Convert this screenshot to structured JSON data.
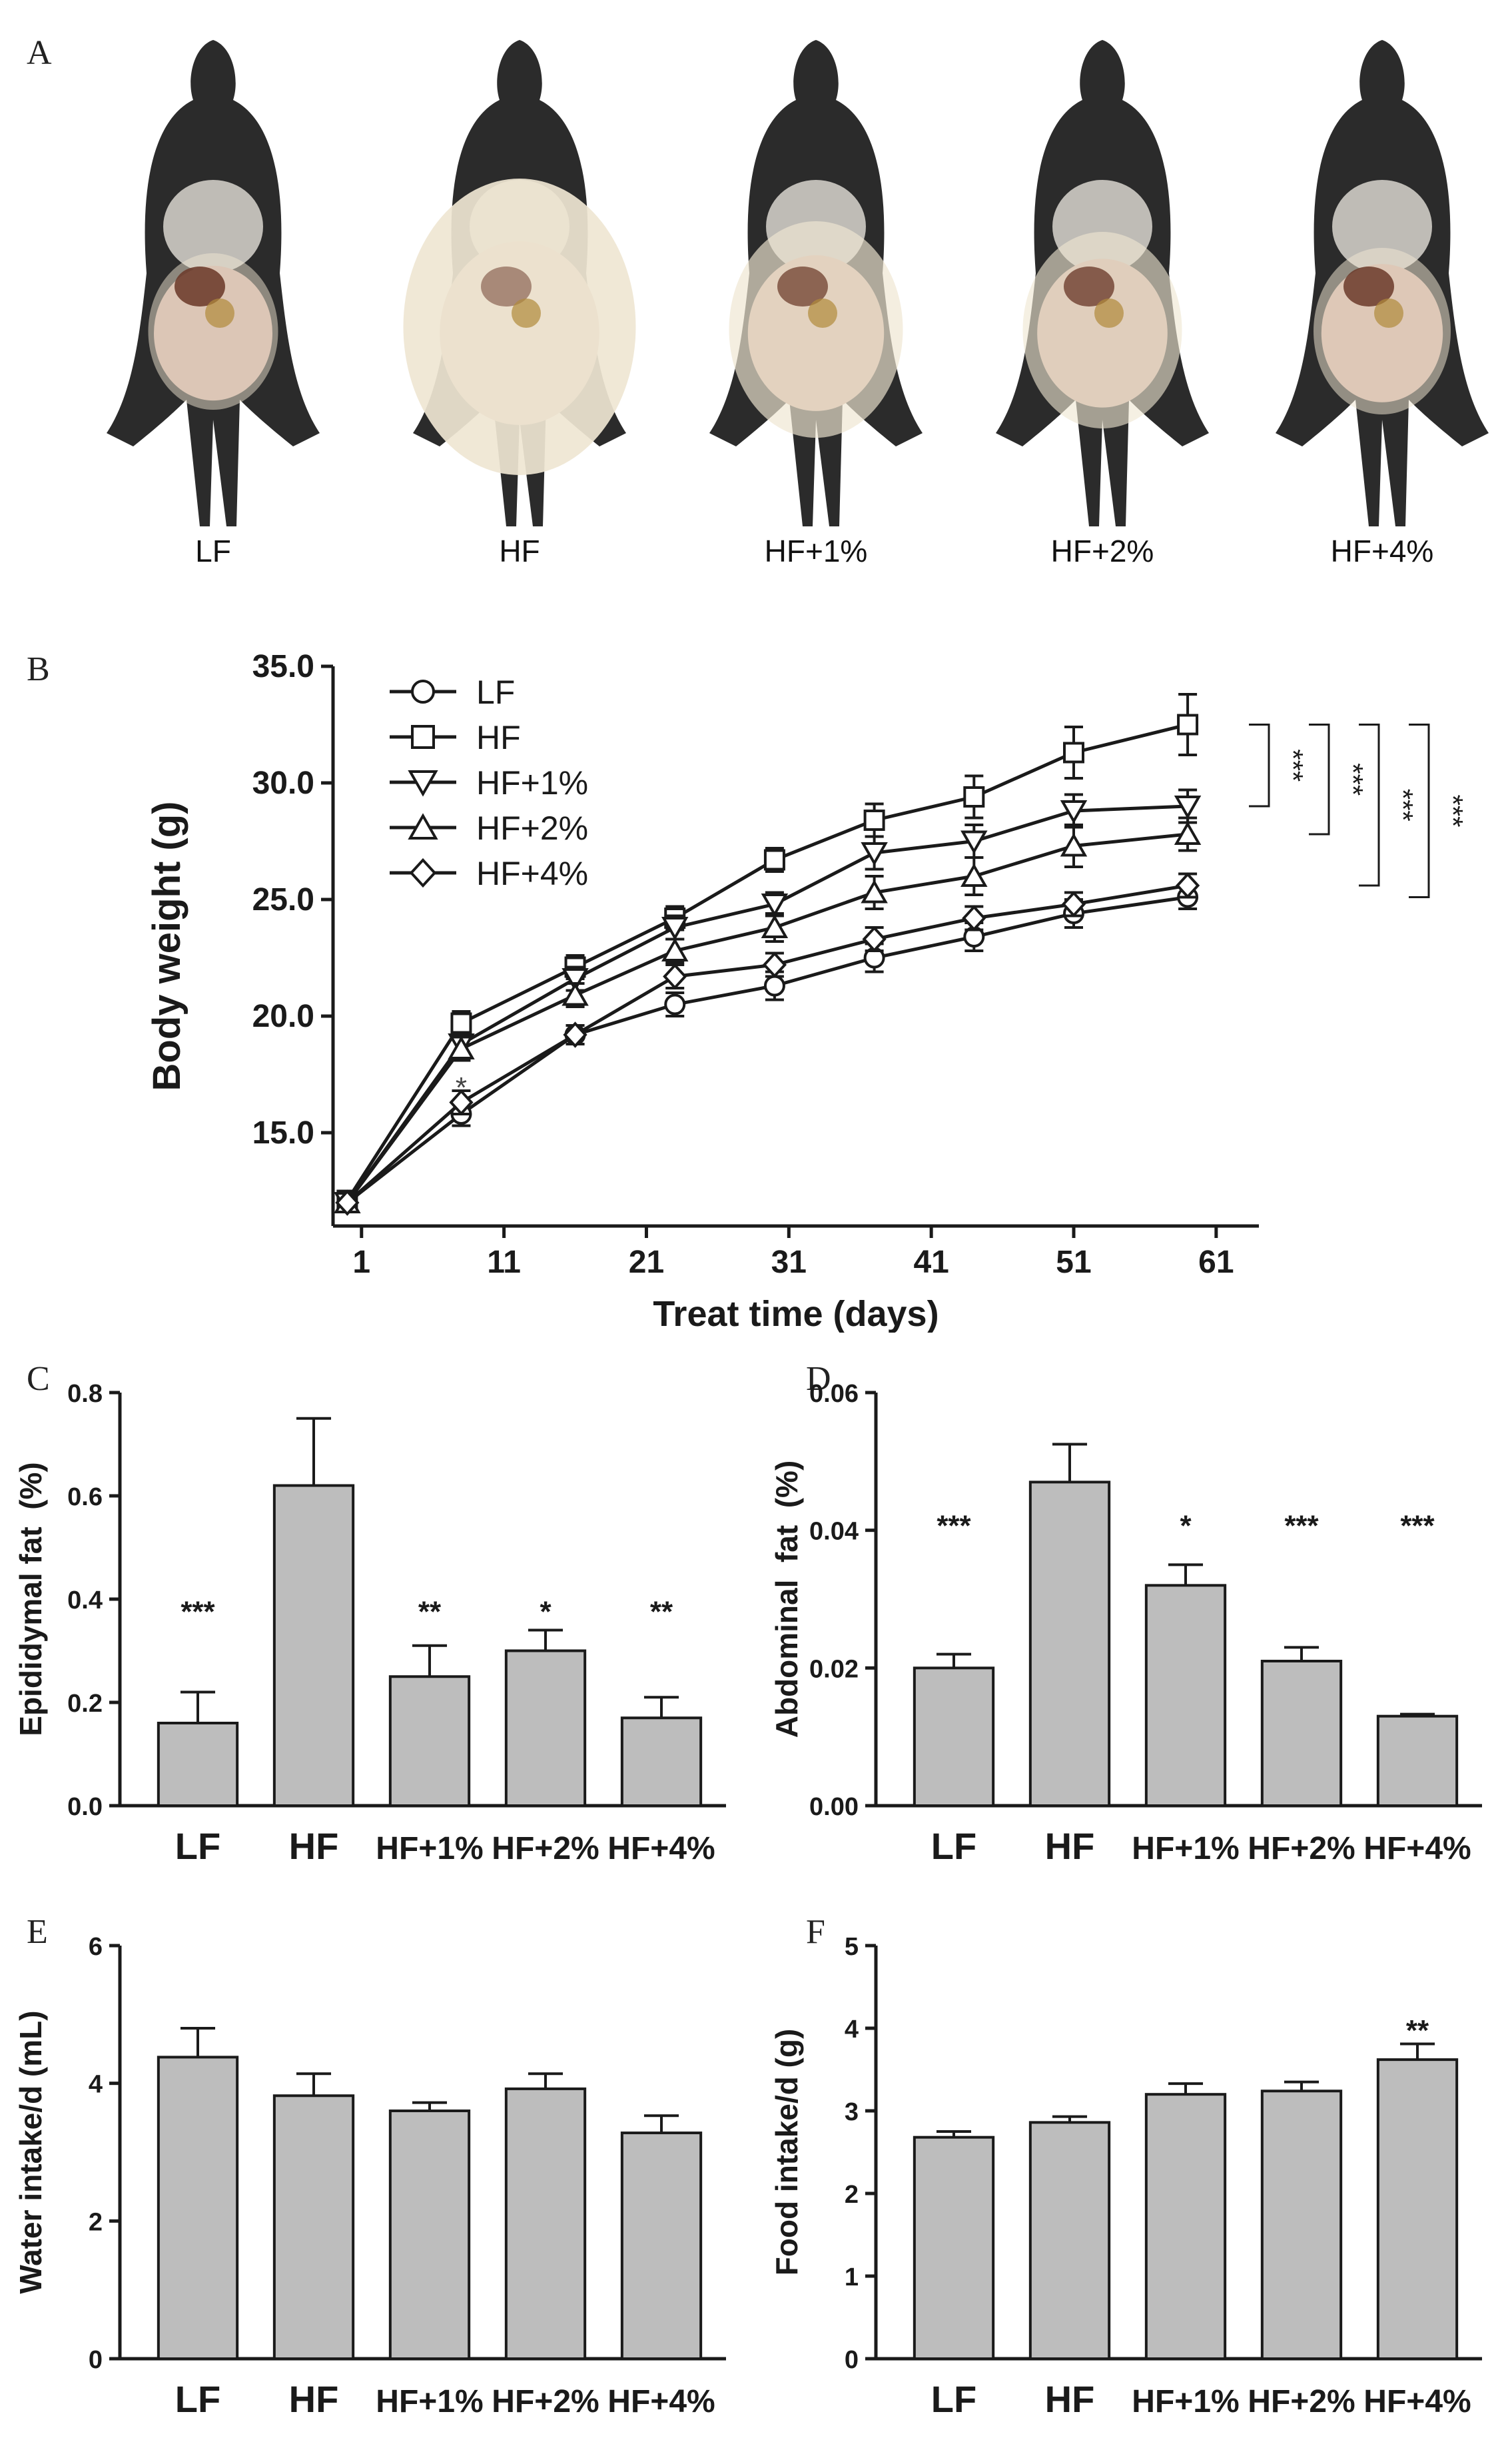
{
  "panels": {
    "a": "A",
    "b": "B",
    "c": "C",
    "d": "D",
    "e": "E",
    "f": "F"
  },
  "mice": {
    "labels": [
      "LF",
      "HF",
      "HF+1%",
      "HF+2%",
      "HF+4%"
    ],
    "fat_level": [
      0.25,
      0.95,
      0.55,
      0.45,
      0.3
    ]
  },
  "colors": {
    "bar": "#bdbdbd",
    "axis": "#1a1a1a",
    "fur": "#2b2b2b",
    "fat": "#efe6d2",
    "liver": "#6b3a2a"
  },
  "chart_data": [
    {
      "id": "B",
      "type": "line",
      "title": "",
      "xlabel": "Treat time (days)",
      "ylabel": "Body weight (g)",
      "xlim": [
        -1,
        64
      ],
      "ylim": [
        11,
        35
      ],
      "xticks": [
        1,
        11,
        21,
        31,
        41,
        51,
        61
      ],
      "yticks": [
        15.0,
        20.0,
        25.0,
        30.0,
        35.0
      ],
      "ytick_labels": [
        "15.0",
        "20.0",
        "25.0",
        "30.0",
        "35.0"
      ],
      "x": [
        0,
        8,
        16,
        23,
        30,
        37,
        44,
        51,
        59
      ],
      "series": [
        {
          "name": "LF",
          "marker": "circle",
          "values": [
            12.0,
            15.8,
            19.2,
            20.5,
            21.3,
            22.5,
            23.4,
            24.4,
            25.1
          ],
          "errors": [
            0.4,
            0.5,
            0.4,
            0.5,
            0.6,
            0.6,
            0.6,
            0.6,
            0.5
          ]
        },
        {
          "name": "HF",
          "marker": "square",
          "values": [
            12.1,
            19.7,
            22.1,
            24.2,
            26.7,
            28.4,
            29.4,
            31.3,
            32.5
          ],
          "errors": [
            0.4,
            0.5,
            0.5,
            0.5,
            0.5,
            0.7,
            0.9,
            1.1,
            1.3
          ]
        },
        {
          "name": "HF+1%",
          "marker": "triangle-down",
          "values": [
            12.0,
            18.8,
            21.6,
            23.8,
            24.8,
            27.0,
            27.5,
            28.8,
            29.0
          ],
          "errors": [
            0.4,
            0.5,
            0.5,
            0.5,
            0.5,
            0.7,
            0.7,
            0.7,
            0.7
          ]
        },
        {
          "name": "HF+2%",
          "marker": "triangle-up",
          "values": [
            12.0,
            18.6,
            20.9,
            22.8,
            23.8,
            25.3,
            26.0,
            27.3,
            27.8
          ],
          "errors": [
            0.4,
            0.5,
            0.5,
            0.5,
            0.6,
            0.7,
            0.8,
            0.9,
            0.7
          ]
        },
        {
          "name": "HF+4%",
          "marker": "diamond",
          "values": [
            12.0,
            16.3,
            19.2,
            21.7,
            22.2,
            23.3,
            24.2,
            24.8,
            25.6
          ],
          "errors": [
            0.4,
            0.5,
            0.4,
            0.5,
            0.5,
            0.5,
            0.5,
            0.5,
            0.5
          ]
        }
      ],
      "annotations": [
        {
          "x": 8,
          "y": 16.8,
          "text": "*"
        }
      ],
      "brackets": [
        {
          "from": "HF",
          "to": "HF+1%",
          "text": "***"
        },
        {
          "from": "HF",
          "to": "HF+2%",
          "text": "***"
        },
        {
          "from": "HF",
          "to": "HF+4%",
          "text": "***"
        },
        {
          "from": "HF",
          "to": "LF",
          "text": "***"
        }
      ],
      "legend_position": "top-left"
    },
    {
      "id": "C",
      "type": "bar",
      "title": "",
      "xlabel": "",
      "ylabel": "Epididymal fat  (%)",
      "categories": [
        "LF",
        "HF",
        "HF+1%",
        "HF+2%",
        "HF+4%"
      ],
      "values": [
        0.16,
        0.62,
        0.25,
        0.3,
        0.17
      ],
      "errors": [
        0.06,
        0.13,
        0.06,
        0.04,
        0.04
      ],
      "labels": [
        "***",
        "",
        "**",
        "*",
        "**"
      ],
      "ylim": [
        0,
        0.8
      ],
      "yticks": [
        0.0,
        0.2,
        0.4,
        0.6,
        0.8
      ],
      "ytick_labels": [
        "0.0",
        "0.2",
        "0.4",
        "0.6",
        "0.8"
      ],
      "star_level": 0.38
    },
    {
      "id": "D",
      "type": "bar",
      "title": "",
      "xlabel": "",
      "ylabel": "Abdominal  fat  (%)",
      "categories": [
        "LF",
        "HF",
        "HF+1%",
        "HF+2%",
        "HF+4%"
      ],
      "values": [
        0.02,
        0.047,
        0.032,
        0.021,
        0.013
      ],
      "errors": [
        0.002,
        0.0055,
        0.003,
        0.002,
        0.0003
      ],
      "labels": [
        "***",
        "",
        "*",
        "***",
        "***"
      ],
      "ylim": [
        0,
        0.06
      ],
      "yticks": [
        0.0,
        0.02,
        0.04,
        0.06
      ],
      "ytick_labels": [
        "0.00",
        "0.02",
        "0.04",
        "0.06"
      ],
      "star_level": 0.041
    },
    {
      "id": "E",
      "type": "bar",
      "title": "",
      "xlabel": "",
      "ylabel": "Water intake/d (mL)",
      "categories": [
        "LF",
        "HF",
        "HF+1%",
        "HF+2%",
        "HF+4%"
      ],
      "values": [
        4.38,
        3.82,
        3.6,
        3.92,
        3.28
      ],
      "errors": [
        0.42,
        0.32,
        0.12,
        0.22,
        0.25
      ],
      "labels": [
        "",
        "",
        "",
        "",
        ""
      ],
      "ylim": [
        0,
        6
      ],
      "yticks": [
        0,
        2,
        4,
        6
      ],
      "ytick_labels": [
        "0",
        "2",
        "4",
        "6"
      ],
      "star_level": 0
    },
    {
      "id": "F",
      "type": "bar",
      "title": "",
      "xlabel": "",
      "ylabel": "Food intake/d (g)",
      "categories": [
        "LF",
        "HF",
        "HF+1%",
        "HF+2%",
        "HF+4%"
      ],
      "values": [
        2.68,
        2.86,
        3.2,
        3.24,
        3.62
      ],
      "errors": [
        0.07,
        0.07,
        0.13,
        0.11,
        0.19
      ],
      "labels": [
        "",
        "",
        "",
        "",
        "**"
      ],
      "ylim": [
        0,
        5
      ],
      "yticks": [
        0,
        1,
        2,
        3,
        4,
        5
      ],
      "ytick_labels": [
        "0",
        "1",
        "2",
        "3",
        "4",
        "5"
      ],
      "star_level": 4.0
    }
  ]
}
